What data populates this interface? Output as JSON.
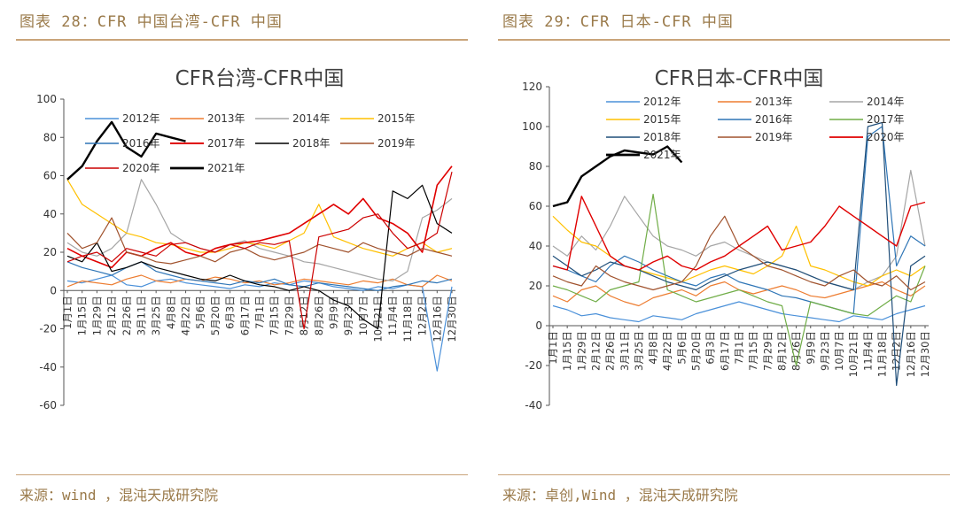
{
  "figures": [
    {
      "label": "图表 28：CFR 中国台湾-CFR 中国",
      "source": "来源：wind ，混沌天成研究院"
    },
    {
      "label": "图表 29：CFR 日本-CFR 中国",
      "source": "来源：卓创,Wind ，混沌天成研究院"
    }
  ],
  "chart_data": [
    {
      "type": "line",
      "title": "CFR台湾-CFR中国",
      "xlabel": "",
      "ylabel": "",
      "ylim": [
        -60,
        100
      ],
      "yticks": [
        -60,
        -40,
        -20,
        0,
        20,
        40,
        60,
        80,
        100
      ],
      "x_tick_labels": [
        "1月1日",
        "1月15日",
        "1月29日",
        "2月12日",
        "2月26日",
        "3月11日",
        "3月25日",
        "4月8日",
        "4月22日",
        "5月6日",
        "5月20日",
        "6月3日",
        "6月17日",
        "7月1日",
        "7月15日",
        "7月29日",
        "8月12日",
        "8月26日",
        "9月9日",
        "9月23日",
        "10月7日",
        "10月21日",
        "11月4日",
        "11月18日",
        "12月2日",
        "12月16日",
        "12月30日"
      ],
      "legend": "top-left",
      "series": [
        {
          "name": "2012年",
          "color": "#4a90d9",
          "width": 1.2,
          "values": [
            5,
            4,
            6,
            8,
            3,
            2,
            5,
            6,
            4,
            3,
            2,
            1,
            3,
            2,
            4,
            3,
            5,
            4,
            2,
            1,
            0,
            2,
            1,
            3,
            2,
            -42,
            2
          ]
        },
        {
          "name": "2013年",
          "color": "#ed7d31",
          "width": 1.2,
          "values": [
            2,
            5,
            4,
            3,
            6,
            8,
            5,
            4,
            6,
            5,
            7,
            6,
            4,
            5,
            3,
            4,
            6,
            5,
            4,
            3,
            5,
            4,
            6,
            3,
            2,
            8,
            5
          ]
        },
        {
          "name": "2014年",
          "color": "#a5a5a5",
          "width": 1.2,
          "values": [
            25,
            20,
            18,
            22,
            30,
            58,
            45,
            30,
            25,
            22,
            20,
            24,
            26,
            22,
            20,
            18,
            15,
            14,
            12,
            10,
            8,
            6,
            5,
            10,
            38,
            42,
            48
          ]
        },
        {
          "name": "2015年",
          "color": "#ffc000",
          "width": 1.2,
          "values": [
            58,
            45,
            40,
            35,
            30,
            28,
            25,
            24,
            22,
            20,
            20,
            22,
            25,
            24,
            22,
            26,
            30,
            45,
            28,
            25,
            22,
            20,
            18,
            22,
            25,
            20,
            22
          ]
        },
        {
          "name": "2016年",
          "color": "#2e75b6",
          "width": 1.2,
          "values": [
            15,
            12,
            10,
            8,
            12,
            15,
            10,
            8,
            6,
            5,
            4,
            3,
            5,
            4,
            6,
            3,
            2,
            4,
            3,
            2,
            1,
            0,
            2,
            3,
            5,
            4,
            6
          ]
        },
        {
          "name": "2017年",
          "color": "#e00000",
          "width": 1.6,
          "values": [
            22,
            18,
            15,
            12,
            20,
            18,
            22,
            25,
            20,
            18,
            22,
            24,
            25,
            26,
            28,
            30,
            35,
            40,
            45,
            40,
            48,
            38,
            35,
            30,
            20,
            55,
            65
          ]
        },
        {
          "name": "2018年",
          "color": "#000000",
          "width": 1.2,
          "values": [
            18,
            15,
            25,
            10,
            12,
            15,
            12,
            10,
            8,
            6,
            5,
            8,
            5,
            3,
            2,
            0,
            2,
            0,
            -5,
            -8,
            -15,
            -20,
            52,
            48,
            55,
            35,
            30
          ]
        },
        {
          "name": "2019年",
          "color": "#a0522d",
          "width": 1.2,
          "values": [
            30,
            22,
            25,
            38,
            20,
            18,
            15,
            14,
            16,
            18,
            15,
            20,
            22,
            18,
            16,
            18,
            20,
            24,
            22,
            20,
            25,
            22,
            20,
            18,
            22,
            20,
            18
          ]
        },
        {
          "name": "2020年",
          "color": "#cc0000",
          "width": 1.2,
          "values": [
            15,
            18,
            20,
            15,
            22,
            20,
            18,
            24,
            25,
            22,
            20,
            24,
            22,
            25,
            24,
            26,
            -20,
            28,
            30,
            32,
            38,
            40,
            30,
            22,
            25,
            30,
            62
          ]
        },
        {
          "name": "2021年",
          "color": "#000000",
          "width": 2.4,
          "values": [
            58,
            65,
            78,
            88,
            75,
            70,
            82,
            80,
            78
          ]
        }
      ]
    },
    {
      "type": "line",
      "title": "CFR日本-CFR中国",
      "xlabel": "",
      "ylabel": "",
      "ylim": [
        -40,
        120
      ],
      "yticks": [
        -40,
        -20,
        0,
        20,
        40,
        60,
        80,
        100,
        120
      ],
      "x_tick_labels": [
        "1月1日",
        "1月15日",
        "1月29日",
        "2月12日",
        "2月26日",
        "3月11日",
        "3月25日",
        "4月8日",
        "4月22日",
        "5月6日",
        "5月20日",
        "6月3日",
        "6月17日",
        "7月1日",
        "7月15日",
        "7月29日",
        "8月12日",
        "8月26日",
        "9月9日",
        "9月23日",
        "10月7日",
        "10月21日",
        "11月4日",
        "11月18日",
        "12月2日",
        "12月16日",
        "12月30日"
      ],
      "legend": "top",
      "series": [
        {
          "name": "2012年",
          "color": "#4a90d9",
          "width": 1.2,
          "values": [
            10,
            8,
            5,
            6,
            4,
            3,
            2,
            5,
            4,
            3,
            6,
            8,
            10,
            12,
            10,
            8,
            6,
            5,
            4,
            3,
            2,
            5,
            4,
            3,
            6,
            8,
            10
          ]
        },
        {
          "name": "2013年",
          "color": "#ed7d31",
          "width": 1.2,
          "values": [
            15,
            12,
            18,
            20,
            15,
            12,
            10,
            14,
            16,
            18,
            15,
            20,
            22,
            18,
            16,
            18,
            20,
            18,
            15,
            14,
            16,
            18,
            20,
            22,
            18,
            15,
            20
          ]
        },
        {
          "name": "2014年",
          "color": "#a5a5a5",
          "width": 1.2,
          "values": [
            40,
            35,
            45,
            38,
            50,
            65,
            55,
            45,
            40,
            38,
            35,
            40,
            42,
            38,
            35,
            32,
            30,
            28,
            25,
            22,
            20,
            18,
            22,
            25,
            35,
            78,
            40
          ]
        },
        {
          "name": "2015年",
          "color": "#ffc000",
          "width": 1.2,
          "values": [
            55,
            48,
            42,
            40,
            35,
            30,
            28,
            26,
            24,
            22,
            25,
            28,
            30,
            28,
            26,
            30,
            35,
            50,
            30,
            28,
            25,
            22,
            20,
            25,
            28,
            25,
            30
          ]
        },
        {
          "name": "2016年",
          "color": "#2e75b6",
          "width": 1.2,
          "values": [
            30,
            28,
            25,
            22,
            30,
            35,
            32,
            28,
            25,
            22,
            20,
            24,
            26,
            22,
            20,
            18,
            15,
            14,
            12,
            10,
            8,
            6,
            95,
            100,
            30,
            45,
            40
          ]
        },
        {
          "name": "2017年",
          "color": "#70ad47",
          "width": 1.2,
          "values": [
            20,
            18,
            15,
            12,
            18,
            20,
            22,
            66,
            18,
            15,
            12,
            14,
            16,
            18,
            15,
            12,
            10,
            -20,
            12,
            10,
            8,
            6,
            5,
            10,
            15,
            12,
            30
          ]
        },
        {
          "name": "2018年",
          "color": "#1f4e79",
          "width": 1.2,
          "values": [
            35,
            30,
            25,
            28,
            32,
            30,
            28,
            25,
            22,
            20,
            18,
            22,
            25,
            28,
            30,
            32,
            30,
            28,
            25,
            22,
            20,
            18,
            100,
            102,
            -30,
            30,
            35
          ]
        },
        {
          "name": "2019年",
          "color": "#a0522d",
          "width": 1.2,
          "values": [
            25,
            22,
            20,
            30,
            25,
            22,
            20,
            18,
            20,
            22,
            30,
            45,
            55,
            40,
            35,
            30,
            28,
            25,
            22,
            20,
            25,
            28,
            22,
            20,
            25,
            18,
            22
          ]
        },
        {
          "name": "2020年",
          "color": "#e00000",
          "width": 1.4,
          "values": [
            30,
            28,
            65,
            50,
            35,
            30,
            28,
            32,
            35,
            30,
            28,
            32,
            35,
            40,
            45,
            50,
            38,
            40,
            42,
            50,
            60,
            55,
            50,
            45,
            40,
            60,
            62
          ]
        },
        {
          "name": "2021年",
          "color": "#000000",
          "width": 2.4,
          "values": [
            60,
            62,
            75,
            80,
            85,
            88,
            87,
            86,
            90,
            82
          ]
        }
      ]
    }
  ]
}
